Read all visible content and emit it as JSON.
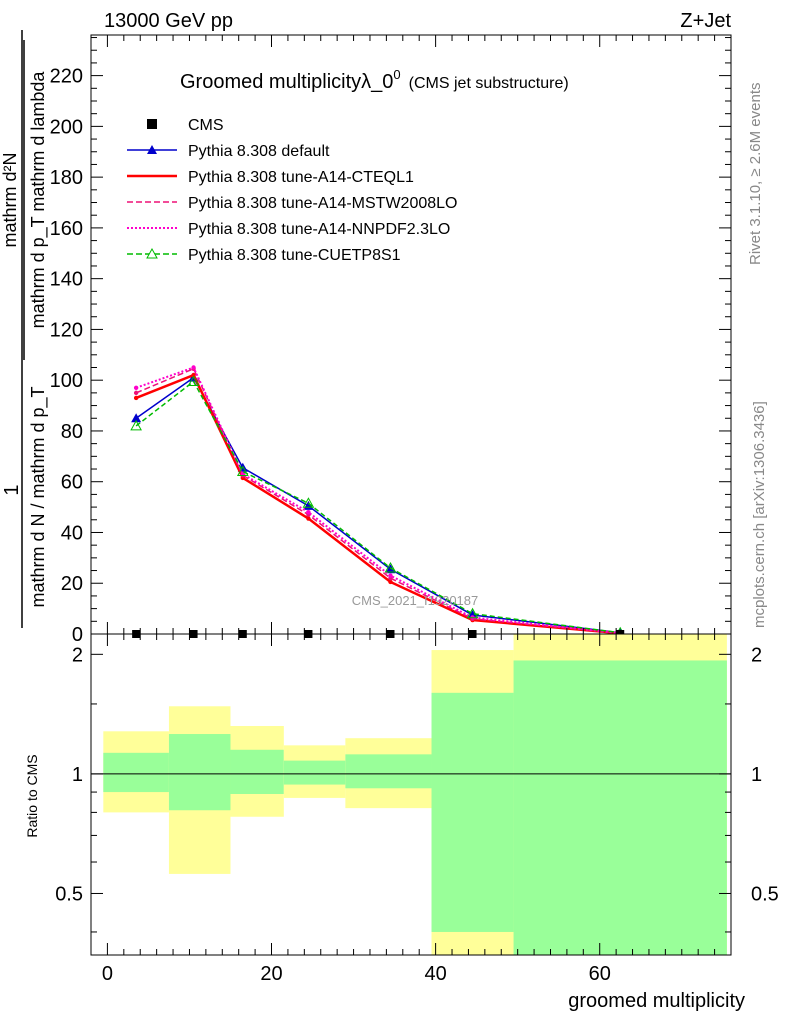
{
  "header": {
    "left": "13000 GeV pp",
    "right": "Z+Jet"
  },
  "side_labels": {
    "rivet": "Rivet 3.1.10, ≥ 2.6M events",
    "mcplots": "mcplots.cern.ch [arXiv:1306.3436]"
  },
  "watermark": "CMS_2021_I1920187",
  "chart_data": [
    {
      "type": "line",
      "title": "Groomed multiplicityλ_0^0",
      "title_main": "Groomed multiplicityλ_0",
      "title_sup": "0",
      "subtitle": "(CMS jet substructure)",
      "ylabel_top": "mathrm d²N",
      "ylabel_top_num": "mathrm d²N",
      "ylabel_top_den": "mathrm d p_T mathrm d lambda",
      "ylabel_frac_num": "1",
      "ylabel_frac_den": "mathrm d N / mathrm d p_T",
      "xlim": [
        -2,
        76
      ],
      "ylim": [
        0,
        236
      ],
      "yticks": [
        0,
        20,
        40,
        60,
        80,
        100,
        120,
        140,
        160,
        180,
        200,
        220
      ],
      "grid": false,
      "legend_position": "top-left",
      "x": [
        3.5,
        10.5,
        16.5,
        24.5,
        34.5,
        44.5,
        62.5
      ],
      "series": [
        {
          "name": "CMS",
          "values": [
            0,
            0,
            0,
            0,
            0,
            0,
            0
          ],
          "color": "#000000",
          "style": "points",
          "marker": "square"
        },
        {
          "name": "Pythia 8.308 default",
          "values": [
            85,
            101,
            65.5,
            50.5,
            25.5,
            7.5,
            0.5
          ],
          "color": "#0000cc",
          "style": "solid",
          "marker": "triangle"
        },
        {
          "name": "Pythia 8.308 tune-A14-CTEQL1",
          "values": [
            93,
            102,
            61.5,
            45.5,
            20.5,
            5.5,
            0.3
          ],
          "color": "#ff0000",
          "style": "solid-thick",
          "marker": "none"
        },
        {
          "name": "Pythia 8.308 tune-A14-MSTW2008LO",
          "values": [
            95,
            104.5,
            62.5,
            47,
            22,
            6,
            0.3
          ],
          "color": "#ee1177",
          "style": "dashed",
          "marker": "none"
        },
        {
          "name": "Pythia 8.308 tune-A14-NNPDF2.3LO",
          "values": [
            97,
            105,
            63,
            48,
            23,
            6.5,
            0.3
          ],
          "color": "#ff00cc",
          "style": "dotted",
          "marker": "none"
        },
        {
          "name": "Pythia 8.308 tune-CUETP8S1",
          "values": [
            82,
            99.5,
            64,
            51.5,
            26,
            8,
            0.5
          ],
          "color": "#00bb00",
          "style": "dashed",
          "marker": "open-triangle"
        }
      ]
    },
    {
      "type": "area",
      "xlabel": "groomed multiplicity",
      "ylabel": "Ratio to CMS",
      "xlim": [
        -2,
        76
      ],
      "ylim": [
        0.35,
        2.25
      ],
      "xticks": [
        0,
        20,
        40,
        60
      ],
      "yticks": [
        0.5,
        1,
        2
      ],
      "reference_line": 1,
      "bins": [
        {
          "lo": -0.5,
          "hi": 7.5,
          "yellow": [
            0.8,
            1.28
          ],
          "green": [
            0.9,
            1.13
          ]
        },
        {
          "lo": 7.5,
          "hi": 15,
          "yellow": [
            0.56,
            1.48
          ],
          "green": [
            0.81,
            1.26
          ]
        },
        {
          "lo": 15,
          "hi": 21.5,
          "yellow": [
            0.78,
            1.32
          ],
          "green": [
            0.89,
            1.15
          ]
        },
        {
          "lo": 21.5,
          "hi": 29,
          "yellow": [
            0.87,
            1.18
          ],
          "green": [
            0.94,
            1.08
          ]
        },
        {
          "lo": 29,
          "hi": 39.5,
          "yellow": [
            0.82,
            1.23
          ],
          "green": [
            0.92,
            1.12
          ]
        },
        {
          "lo": 39.5,
          "hi": 49.5,
          "yellow": [
            0.35,
            2.05
          ],
          "green": [
            0.4,
            1.6
          ]
        },
        {
          "lo": 49.5,
          "hi": 75.5,
          "yellow": [
            0.35,
            2.25
          ],
          "green": [
            0.35,
            1.93
          ]
        }
      ]
    }
  ]
}
